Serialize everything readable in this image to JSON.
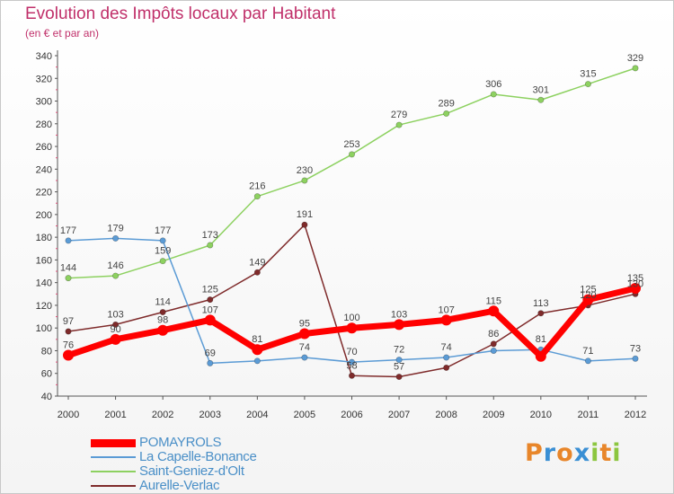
{
  "header": {
    "title": "Evolution des Impôts locaux par Habitant",
    "subtitle": "(en € et par an)"
  },
  "brand": {
    "letters": [
      "P",
      "r",
      "o",
      "x",
      "i",
      "t",
      "i"
    ],
    "colors": [
      "#e8862a",
      "#3a8fd4",
      "#e8862a",
      "#3a8fd4",
      "#8cc63f",
      "#e8862a",
      "#8cc63f"
    ]
  },
  "chart_data": {
    "type": "line",
    "title": "Evolution des Impôts locaux par Habitant",
    "subtitle": "(en € et par an)",
    "xlabel": "",
    "ylabel": "",
    "categories": [
      "2000",
      "2001",
      "2002",
      "2003",
      "2004",
      "2005",
      "2006",
      "2007",
      "2008",
      "2009",
      "2010",
      "2011",
      "2012"
    ],
    "ylim": [
      40,
      340
    ],
    "yticks": [
      40,
      60,
      80,
      100,
      120,
      140,
      160,
      180,
      200,
      220,
      240,
      260,
      280,
      300,
      320,
      340
    ],
    "grid": false,
    "legend_position": "bottom-left",
    "series": [
      {
        "name": "POMAYROLS",
        "color": "#ff0000",
        "emphasis": true,
        "values": [
          76,
          90,
          98,
          107,
          81,
          95,
          100,
          103,
          107,
          115,
          75,
          125,
          135
        ],
        "labels": [
          "76",
          "90",
          "98",
          "107",
          "81",
          "95",
          "100",
          "103",
          "107",
          "115",
          "",
          "125",
          "135"
        ]
      },
      {
        "name": "La Capelle-Bonance",
        "color": "#5b9bd5",
        "emphasis": false,
        "values": [
          177,
          179,
          177,
          69,
          71,
          74,
          70,
          72,
          74,
          80,
          81,
          71,
          73
        ],
        "labels": [
          "177",
          "179",
          "177",
          "69",
          "",
          "74",
          "70",
          "72",
          "74",
          "",
          "81",
          "71",
          "73"
        ]
      },
      {
        "name": "Saint-Geniez-d'Olt",
        "color": "#8dd160",
        "emphasis": false,
        "values": [
          144,
          146,
          159,
          173,
          216,
          230,
          253,
          279,
          289,
          306,
          301,
          315,
          329
        ],
        "labels": [
          "144",
          "146",
          "159",
          "173",
          "216",
          "230",
          "253",
          "279",
          "289",
          "306",
          "301",
          "315",
          "329"
        ]
      },
      {
        "name": "Aurelle-Verlac",
        "color": "#7f2b2b",
        "emphasis": false,
        "values": [
          97,
          103,
          114,
          125,
          149,
          191,
          58,
          57,
          65,
          86,
          113,
          120,
          130
        ],
        "labels": [
          "97",
          "103",
          "114",
          "125",
          "149",
          "191",
          "58",
          "57",
          "",
          "86",
          "113",
          "120",
          "130"
        ]
      }
    ]
  }
}
